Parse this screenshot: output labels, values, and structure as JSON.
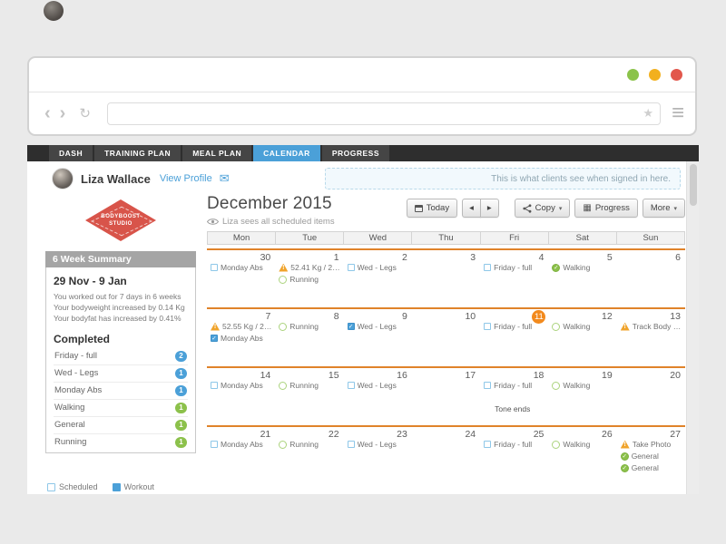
{
  "browser": {
    "back_icon": "‹",
    "forward_icon": "›",
    "refresh_icon": "↻",
    "star_icon": "★",
    "menu_icon": "≡",
    "url_value": ""
  },
  "nav": {
    "tabs": [
      {
        "label": "DASH",
        "active": false
      },
      {
        "label": "TRAINING PLAN",
        "active": false
      },
      {
        "label": "MEAL PLAN",
        "active": false
      },
      {
        "label": "CALENDAR",
        "active": true
      },
      {
        "label": "PROGRESS",
        "active": false
      }
    ]
  },
  "client_header": {
    "name": "Liza Wallace",
    "view_profile_label": "View Profile",
    "envelope_icon": "✉",
    "notice": "This is what clients see when signed in here."
  },
  "sidebar": {
    "logo": {
      "line1": "BODYBOOST",
      "line2": "STUDIO"
    },
    "summary_title": "6 Week Summary",
    "date_range": "29 Nov - 9 Jan",
    "summary_lines": [
      "You worked out for 7 days in 6 weeks",
      "Your bodyweight increased by 0.14 Kg",
      "Your bodyfat has increased by 0.41%"
    ],
    "completed_title": "Completed",
    "completed_items": [
      {
        "label": "Friday - full",
        "count": "2",
        "color": "blue"
      },
      {
        "label": "Wed - Legs",
        "count": "1",
        "color": "blue"
      },
      {
        "label": "Monday Abs",
        "count": "1",
        "color": "blue"
      },
      {
        "label": "Walking",
        "count": "1",
        "color": "green"
      },
      {
        "label": "General",
        "count": "1",
        "color": "green"
      },
      {
        "label": "Running",
        "count": "1",
        "color": "green"
      }
    ],
    "legend": [
      {
        "label": "Scheduled",
        "swatch": "outline"
      },
      {
        "label": "Workout",
        "swatch": "filled"
      }
    ]
  },
  "calendar": {
    "title": "December 2015",
    "subtitle": "Liza sees all scheduled items",
    "toolbar": {
      "today_label": "Today",
      "prev_icon": "◂",
      "next_icon": "▸",
      "copy_label": "Copy",
      "progress_label": "Progress",
      "more_label": "More",
      "caret_icon": "▾",
      "grid_icon": "▦"
    },
    "day_headers": [
      "Mon",
      "Tue",
      "Wed",
      "Thu",
      "Fri",
      "Sat",
      "Sun"
    ],
    "weeks": [
      {
        "days": [
          {
            "date": "30",
            "events": [
              {
                "icon": "checkbox",
                "label": "Monday Abs"
              }
            ]
          },
          {
            "date": "1",
            "events": [
              {
                "icon": "warning",
                "label": "52.41 Kg / 20..."
              },
              {
                "icon": "circle",
                "label": "Running"
              }
            ]
          },
          {
            "date": "2",
            "events": [
              {
                "icon": "checkbox",
                "label": "Wed - Legs"
              }
            ]
          },
          {
            "date": "3",
            "events": []
          },
          {
            "date": "4",
            "events": [
              {
                "icon": "checkbox",
                "label": "Friday - full"
              }
            ]
          },
          {
            "date": "5",
            "events": [
              {
                "icon": "circle-checked",
                "label": "Walking"
              }
            ]
          },
          {
            "date": "6",
            "events": []
          }
        ]
      },
      {
        "days": [
          {
            "date": "7",
            "events": [
              {
                "icon": "warning",
                "label": "52.55 Kg / 20..."
              },
              {
                "icon": "checkbox-checked",
                "label": "Monday Abs"
              }
            ]
          },
          {
            "date": "8",
            "events": [
              {
                "icon": "circle",
                "label": "Running"
              }
            ]
          },
          {
            "date": "9",
            "events": [
              {
                "icon": "checkbox-checked",
                "label": "Wed - Legs"
              }
            ]
          },
          {
            "date": "10",
            "events": []
          },
          {
            "date": "11",
            "today": true,
            "events": [
              {
                "icon": "checkbox",
                "label": "Friday - full"
              }
            ]
          },
          {
            "date": "12",
            "events": [
              {
                "icon": "circle",
                "label": "Walking"
              }
            ]
          },
          {
            "date": "13",
            "events": [
              {
                "icon": "warning",
                "label": "Track Body st..."
              }
            ]
          }
        ]
      },
      {
        "days": [
          {
            "date": "14",
            "events": [
              {
                "icon": "checkbox",
                "label": "Monday Abs"
              }
            ]
          },
          {
            "date": "15",
            "events": [
              {
                "icon": "circle",
                "label": "Running"
              }
            ]
          },
          {
            "date": "16",
            "events": [
              {
                "icon": "checkbox",
                "label": "Wed - Legs"
              }
            ]
          },
          {
            "date": "17",
            "events": []
          },
          {
            "date": "18",
            "events": [
              {
                "icon": "checkbox",
                "label": "Friday - full"
              },
              {
                "icon": "none",
                "label": "Tone ends"
              }
            ]
          },
          {
            "date": "19",
            "events": [
              {
                "icon": "circle",
                "label": "Walking"
              }
            ]
          },
          {
            "date": "20",
            "events": []
          }
        ]
      },
      {
        "days": [
          {
            "date": "21",
            "events": [
              {
                "icon": "checkbox",
                "label": "Monday Abs"
              }
            ]
          },
          {
            "date": "22",
            "events": [
              {
                "icon": "circle",
                "label": "Running"
              }
            ]
          },
          {
            "date": "23",
            "events": [
              {
                "icon": "checkbox",
                "label": "Wed - Legs"
              }
            ]
          },
          {
            "date": "24",
            "events": []
          },
          {
            "date": "25",
            "events": [
              {
                "icon": "checkbox",
                "label": "Friday - full"
              }
            ]
          },
          {
            "date": "26",
            "events": [
              {
                "icon": "circle",
                "label": "Walking"
              }
            ]
          },
          {
            "date": "27",
            "events": [
              {
                "icon": "warning",
                "label": "Take Photo"
              },
              {
                "icon": "circle-checked",
                "label": "General"
              },
              {
                "icon": "circle-checked",
                "label": "General"
              }
            ]
          }
        ]
      }
    ]
  },
  "colors": {
    "accent_blue": "#4ba0d8",
    "accent_green": "#8cc14b",
    "today_orange": "#f28a1e",
    "week_line_orange": "#e0832a",
    "warning_orange": "#f0a32a",
    "brand_red": "#d8544a"
  }
}
